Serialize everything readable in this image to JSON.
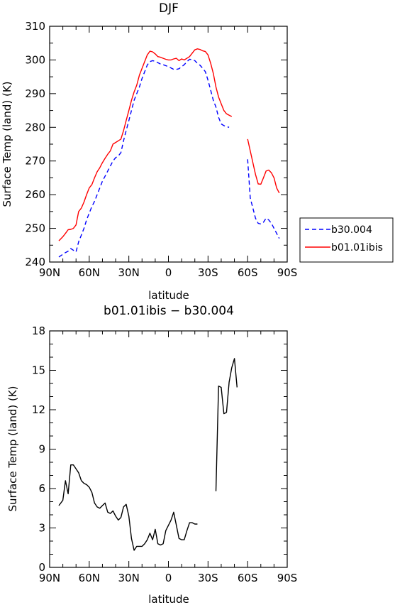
{
  "chart_data": [
    {
      "type": "line",
      "title": "DJF",
      "xlabel": "latitude",
      "ylabel": "Surface Temp (land) (K)",
      "ylim": [
        240,
        310
      ],
      "yticks": [
        240,
        250,
        260,
        270,
        280,
        290,
        300,
        310
      ],
      "xlim": [
        90,
        -90
      ],
      "xticks": [
        {
          "value": 90,
          "label": "90N"
        },
        {
          "value": 60,
          "label": "60N"
        },
        {
          "value": 30,
          "label": "30N"
        },
        {
          "value": 0,
          "label": "0"
        },
        {
          "value": -30,
          "label": "30S"
        },
        {
          "value": -60,
          "label": "60S"
        },
        {
          "value": -90,
          "label": "90S"
        }
      ],
      "legend_position": "right",
      "series": [
        {
          "name": "b30.004",
          "color": "#0000ff",
          "dash": "dashed",
          "x": [
            83,
            80,
            78,
            76,
            74,
            72,
            70,
            68,
            66,
            64,
            62,
            60,
            58,
            56,
            54,
            52,
            50,
            48,
            46,
            44,
            42,
            40,
            38,
            36,
            34,
            32,
            30,
            28,
            26,
            24,
            22,
            20,
            18,
            16,
            14,
            12,
            10,
            8,
            6,
            4,
            2,
            0,
            -2,
            -4,
            -6,
            -8,
            -10,
            -12,
            -14,
            -16,
            -18,
            -20,
            -22,
            -24,
            -26,
            -28,
            -30,
            -32,
            -34,
            -36,
            -38,
            -40,
            -42,
            -44,
            -46,
            -48,
            -50,
            -52,
            -54,
            -56,
            -58,
            -60,
            -62,
            -64,
            -66,
            -68,
            -70,
            -72,
            -74,
            -76,
            -78,
            -80,
            -82,
            -84,
            -86,
            -88
          ],
          "values": [
            241.5,
            242.3,
            242.8,
            243.2,
            244.0,
            243.5,
            243.0,
            246.0,
            248.0,
            250.0,
            252.5,
            254.5,
            256.5,
            258.0,
            260.0,
            262.0,
            264.0,
            265.5,
            267.0,
            268.5,
            270.0,
            271.0,
            271.5,
            272.5,
            276.0,
            279.0,
            282.0,
            285.0,
            288.0,
            290.0,
            292.0,
            294.5,
            296.5,
            298.5,
            299.5,
            299.8,
            299.6,
            299.2,
            298.8,
            298.6,
            298.3,
            298.0,
            297.6,
            297.2,
            297.2,
            297.4,
            298.0,
            298.6,
            299.5,
            300.2,
            300.1,
            299.8,
            299.0,
            298.4,
            297.5,
            296.5,
            294.0,
            291.0,
            288.0,
            286.0,
            283.0,
            281.0,
            280.5,
            280.2,
            280.0,
            null,
            null,
            null,
            null,
            null,
            null,
            270.5,
            259.0,
            256.0,
            253.0,
            251.5,
            251.3,
            251.8,
            253.0,
            252.5,
            251.5,
            250.0,
            248.5,
            247.0,
            null,
            null
          ],
          "x_note": ""
        },
        {
          "name": "b01.01ibis",
          "color": "#ff0000",
          "dash": "solid",
          "x": [
            83,
            80,
            78,
            76,
            74,
            72,
            70,
            68,
            66,
            64,
            62,
            60,
            58,
            56,
            54,
            52,
            50,
            48,
            46,
            44,
            42,
            40,
            38,
            36,
            34,
            32,
            30,
            28,
            26,
            24,
            22,
            20,
            18,
            16,
            14,
            12,
            10,
            8,
            6,
            4,
            2,
            0,
            -2,
            -4,
            -6,
            -8,
            -10,
            -12,
            -14,
            -16,
            -18,
            -20,
            -22,
            -24,
            -26,
            -28,
            -30,
            -32,
            -34,
            -36,
            -38,
            -40,
            -42,
            -44,
            -46,
            -48,
            -50,
            -52,
            -54,
            -56,
            -58,
            -60,
            -62,
            -64,
            -66,
            -68,
            -70,
            -72,
            -74,
            -76,
            -78,
            -80,
            -82,
            -84,
            -86,
            -88
          ],
          "values": [
            246.3,
            247.5,
            248.5,
            249.6,
            249.7,
            250.0,
            251.0,
            255.0,
            256.0,
            257.8,
            260.0,
            262.0,
            263.0,
            265.0,
            266.8,
            268.0,
            269.5,
            270.8,
            272.0,
            273.0,
            275.0,
            275.5,
            276.0,
            276.5,
            279.0,
            282.0,
            285.0,
            288.0,
            290.5,
            292.5,
            295.5,
            297.5,
            299.5,
            301.5,
            302.6,
            302.4,
            301.8,
            301.0,
            300.8,
            300.5,
            300.2,
            300.0,
            300.0,
            300.3,
            300.5,
            299.8,
            300.3,
            300.0,
            300.5,
            301.0,
            302.0,
            303.0,
            303.3,
            303.1,
            302.7,
            302.5,
            301.5,
            299.0,
            296.0,
            292.0,
            289.0,
            287.0,
            285.0,
            284.0,
            283.6,
            283.2,
            null,
            null,
            null,
            null,
            null,
            276.5,
            273.0,
            269.5,
            266.0,
            263.2,
            263.1,
            265.0,
            267.0,
            267.3,
            266.5,
            265.0,
            262.0,
            260.5,
            null,
            null
          ]
        }
      ]
    },
    {
      "type": "line",
      "title": "b01.01ibis − b30.004",
      "xlabel": "latitude",
      "ylabel": "Surface Temp (land) (K)",
      "ylim": [
        0,
        18
      ],
      "yticks": [
        0,
        3,
        6,
        9,
        12,
        15,
        18
      ],
      "xlim": [
        90,
        -90
      ],
      "xticks": [
        {
          "value": 90,
          "label": "90N"
        },
        {
          "value": 60,
          "label": "60N"
        },
        {
          "value": 30,
          "label": "30N"
        },
        {
          "value": 0,
          "label": "0"
        },
        {
          "value": -30,
          "label": "30S"
        },
        {
          "value": -60,
          "label": "60S"
        },
        {
          "value": -90,
          "label": "90S"
        }
      ],
      "series": [
        {
          "color": "#000000",
          "dash": "solid",
          "x": [
            83,
            80,
            78,
            76,
            74,
            72,
            70,
            68,
            66,
            64,
            62,
            60,
            58,
            56,
            54,
            52,
            50,
            48,
            46,
            44,
            42,
            40,
            38,
            36,
            34,
            32,
            30,
            28,
            26,
            24,
            22,
            20,
            18,
            16,
            14,
            12,
            10,
            8,
            6,
            4,
            2,
            0,
            -2,
            -4,
            -6,
            -8,
            -10,
            -12,
            -14,
            -16,
            -18,
            -20,
            -22,
            -24,
            -26,
            -28,
            -30,
            -32,
            -34,
            -36,
            -38,
            -40,
            -42,
            -44,
            -46,
            -48,
            -50,
            -52,
            -54,
            -56,
            -58,
            -60,
            -62,
            -64,
            -66,
            -68,
            -70,
            -72,
            -74,
            -76,
            -78,
            -80,
            -82,
            -84,
            -86,
            -88
          ],
          "values": [
            4.7,
            5.1,
            6.6,
            5.6,
            7.8,
            7.8,
            7.5,
            7.2,
            6.6,
            6.4,
            6.3,
            6.1,
            5.7,
            4.9,
            4.6,
            4.5,
            4.7,
            4.9,
            4.2,
            4.1,
            4.3,
            3.9,
            3.6,
            3.8,
            4.6,
            4.8,
            3.9,
            2.2,
            1.3,
            1.6,
            1.6,
            1.6,
            1.8,
            2.1,
            2.6,
            2.1,
            2.9,
            1.8,
            1.7,
            1.8,
            2.8,
            3.2,
            3.6,
            4.2,
            3.2,
            2.2,
            2.1,
            2.1,
            2.8,
            3.4,
            3.4,
            3.3,
            3.3,
            null,
            null,
            null,
            null,
            null,
            null,
            5.8,
            13.8,
            13.7,
            11.7,
            11.8,
            14.1,
            15.2,
            15.9,
            13.7,
            null,
            null,
            null,
            null,
            null,
            null,
            null,
            null,
            null,
            null,
            null,
            null,
            null,
            null,
            null,
            null,
            null,
            null
          ],
          "x_note": ""
        }
      ]
    }
  ]
}
